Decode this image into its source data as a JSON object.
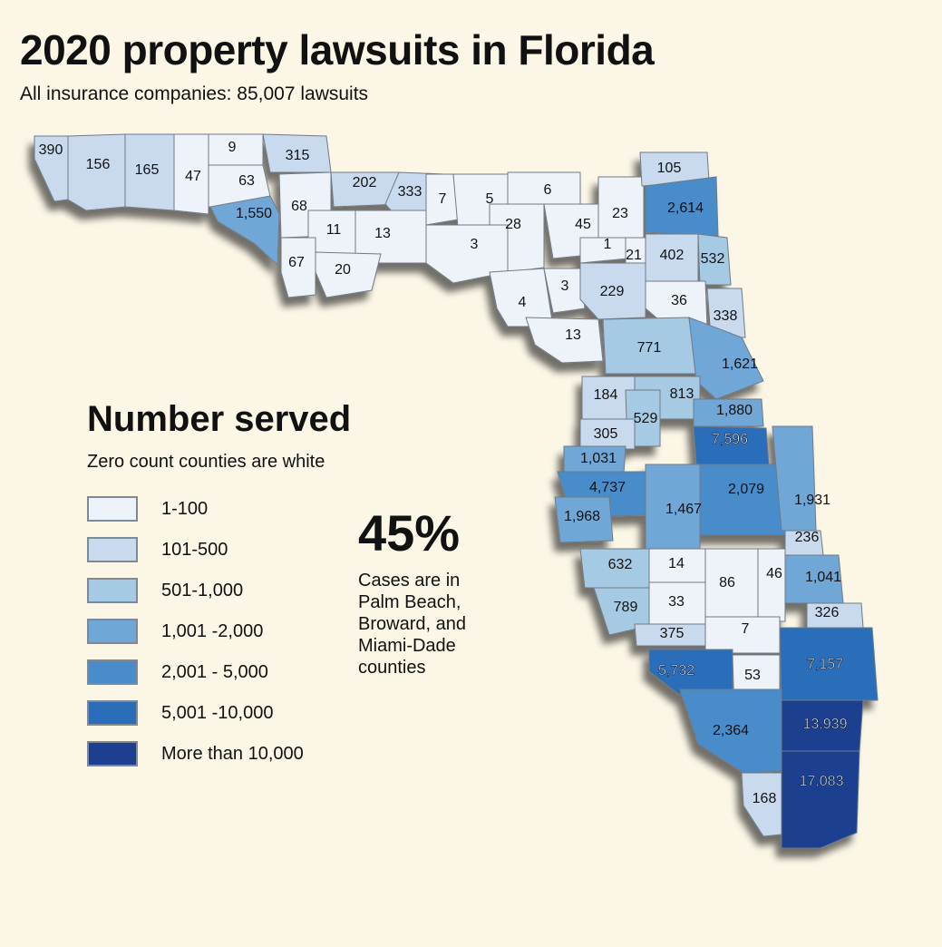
{
  "header": {
    "title": "2020 property lawsuits in Florida",
    "subtitle": "All insurance companies: 85,007 lawsuits"
  },
  "legend": {
    "title": "Number served",
    "subtitle": "Zero count counties are white",
    "items": [
      {
        "label": "1-100",
        "color": "#eef3f9"
      },
      {
        "label": "101-500",
        "color": "#c9daee"
      },
      {
        "label": "501-1,000",
        "color": "#a6cae4"
      },
      {
        "label": "1,001 -2,000",
        "color": "#6fa7d6"
      },
      {
        "label": "2,001 - 5,000",
        "color": "#4a8cca"
      },
      {
        "label": "5,001 -10,000",
        "color": "#2a6db8"
      },
      {
        "label": "More than 10,000",
        "color": "#1c3f8f"
      }
    ]
  },
  "callout": {
    "percent": "45%",
    "text": "Cases are in Palm Beach, Broward, and Miami-Dade counties"
  },
  "map_data": {
    "counties": [
      {
        "label": "390",
        "value": 390
      },
      {
        "label": "156",
        "value": 156
      },
      {
        "label": "165",
        "value": 165
      },
      {
        "label": "47",
        "value": 47
      },
      {
        "label": "9",
        "value": 9
      },
      {
        "label": "63",
        "value": 63
      },
      {
        "label": "315",
        "value": 315
      },
      {
        "label": "1,550",
        "value": 1550
      },
      {
        "label": "68",
        "value": 68
      },
      {
        "label": "202",
        "value": 202
      },
      {
        "label": "333",
        "value": 333
      },
      {
        "label": "11",
        "value": 11
      },
      {
        "label": "13",
        "value": 13
      },
      {
        "label": "67",
        "value": 67
      },
      {
        "label": "20",
        "value": 20
      },
      {
        "label": "7",
        "value": 7
      },
      {
        "label": "5",
        "value": 5
      },
      {
        "label": "6",
        "value": 6
      },
      {
        "label": "28",
        "value": 28
      },
      {
        "label": "45",
        "value": 45
      },
      {
        "label": "23",
        "value": 23
      },
      {
        "label": "105",
        "value": 105
      },
      {
        "label": "2,614",
        "value": 2614
      },
      {
        "label": "3",
        "value": 3
      },
      {
        "label": "1",
        "value": 1
      },
      {
        "label": "21",
        "value": 21
      },
      {
        "label": "402",
        "value": 402
      },
      {
        "label": "532",
        "value": 532
      },
      {
        "label": "4",
        "value": 4
      },
      {
        "label": "3",
        "value": 3
      },
      {
        "label": "229",
        "value": 229
      },
      {
        "label": "36",
        "value": 36
      },
      {
        "label": "338",
        "value": 338
      },
      {
        "label": "13",
        "value": 13
      },
      {
        "label": "771",
        "value": 771
      },
      {
        "label": "1,621",
        "value": 1621
      },
      {
        "label": "184",
        "value": 184
      },
      {
        "label": "813",
        "value": 813
      },
      {
        "label": "529",
        "value": 529
      },
      {
        "label": "1,880",
        "value": 1880
      },
      {
        "label": "305",
        "value": 305
      },
      {
        "label": "7,596",
        "value": 7596
      },
      {
        "label": "1,031",
        "value": 1031
      },
      {
        "label": "4,737",
        "value": 4737
      },
      {
        "label": "2,079",
        "value": 2079
      },
      {
        "label": "1,931",
        "value": 1931
      },
      {
        "label": "1,968",
        "value": 1968
      },
      {
        "label": "1,467",
        "value": 1467
      },
      {
        "label": "236",
        "value": 236
      },
      {
        "label": "632",
        "value": 632
      },
      {
        "label": "14",
        "value": 14
      },
      {
        "label": "86",
        "value": 86
      },
      {
        "label": "46",
        "value": 46
      },
      {
        "label": "1,041",
        "value": 1041
      },
      {
        "label": "33",
        "value": 33
      },
      {
        "label": "789",
        "value": 789
      },
      {
        "label": "326",
        "value": 326
      },
      {
        "label": "375",
        "value": 375
      },
      {
        "label": "7",
        "value": 7
      },
      {
        "label": "7,157",
        "value": 7157
      },
      {
        "label": "5,732",
        "value": 5732
      },
      {
        "label": "53",
        "value": 53
      },
      {
        "label": "13,939",
        "value": 13939
      },
      {
        "label": "2,364",
        "value": 2364
      },
      {
        "label": "17,083",
        "value": 17083
      },
      {
        "label": "168",
        "value": 168
      }
    ]
  }
}
